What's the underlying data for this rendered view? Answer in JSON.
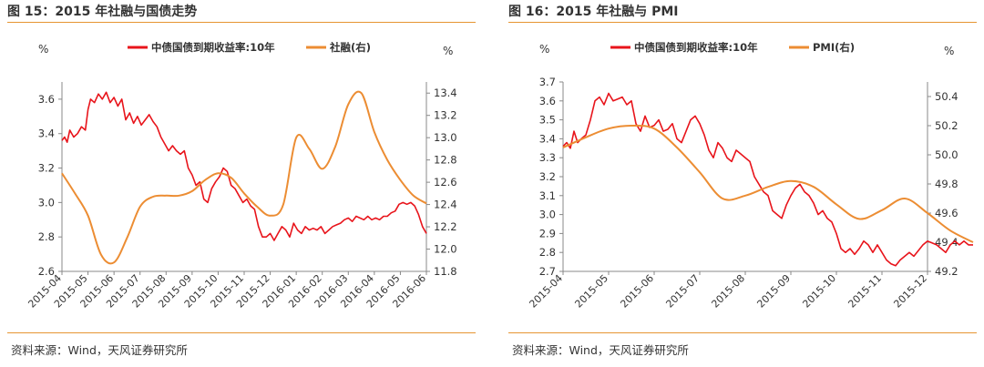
{
  "colors": {
    "accent": "#E69532",
    "red_series": "#E8141B",
    "orange_series": "#EC8D33"
  },
  "left": {
    "title": "图 15：2015 年社融与国债走势",
    "source": "资料来源：Wind，天风证券研究所"
  },
  "right": {
    "title": "图 16：2015 年社融与 PMI",
    "source": "资料来源：Wind，天风证券研究所"
  },
  "chart_data": [
    {
      "type": "line",
      "title": "",
      "grid": false,
      "legend": "top-right",
      "y_left_unit": "%",
      "y_right_unit": "%",
      "y_left_lim": [
        2.6,
        3.7
      ],
      "y_left_ticks": [
        "2.6",
        "2.8",
        "3.0",
        "3.2",
        "3.4",
        "3.6"
      ],
      "y_right_lim": [
        11.8,
        13.5
      ],
      "y_right_ticks": [
        "11.8",
        "12.0",
        "12.2",
        "12.4",
        "12.6",
        "12.8",
        "13.0",
        "13.2",
        "13.4"
      ],
      "x_categories": [
        "2015-04",
        "2015-05",
        "2015-06",
        "2015-07",
        "2015-08",
        "2015-09",
        "2015-10",
        "2015-11",
        "2015-12",
        "2016-01",
        "2016-02",
        "2016-03",
        "2016-04",
        "2016-05",
        "2016-06"
      ],
      "series": [
        {
          "name": "中债国债到期收益率:10年",
          "axis": "left",
          "x": [
            0,
            0.1,
            0.2,
            0.3,
            0.45,
            0.6,
            0.75,
            0.9,
            1.0,
            1.1,
            1.25,
            1.4,
            1.55,
            1.7,
            1.85,
            2.0,
            2.15,
            2.3,
            2.45,
            2.6,
            2.75,
            2.9,
            3.05,
            3.2,
            3.35,
            3.5,
            3.65,
            3.8,
            3.95,
            4.1,
            4.25,
            4.4,
            4.55,
            4.7,
            4.85,
            5.0,
            5.15,
            5.3,
            5.45,
            5.6,
            5.75,
            5.9,
            6.05,
            6.2,
            6.35,
            6.5,
            6.65,
            6.8,
            6.95,
            7.1,
            7.25,
            7.4,
            7.55,
            7.7,
            7.85,
            8.0,
            8.15,
            8.3,
            8.45,
            8.6,
            8.75,
            8.9,
            9.05,
            9.2,
            9.35,
            9.5,
            9.65,
            9.8,
            9.95,
            10.1,
            10.25,
            10.4,
            10.55,
            10.7,
            10.85,
            11.0,
            11.15,
            11.3,
            11.45,
            11.6,
            11.75,
            11.9,
            12.05,
            12.2,
            12.35,
            12.5,
            12.65,
            12.8,
            12.95,
            13.1,
            13.25,
            13.4,
            13.55,
            13.7,
            13.85,
            14.0
          ],
          "values": [
            3.36,
            3.38,
            3.35,
            3.42,
            3.38,
            3.4,
            3.44,
            3.42,
            3.54,
            3.6,
            3.58,
            3.63,
            3.6,
            3.64,
            3.58,
            3.61,
            3.56,
            3.6,
            3.48,
            3.52,
            3.46,
            3.5,
            3.45,
            3.48,
            3.51,
            3.47,
            3.44,
            3.38,
            3.34,
            3.3,
            3.33,
            3.3,
            3.28,
            3.3,
            3.2,
            3.16,
            3.1,
            3.12,
            3.02,
            3.0,
            3.08,
            3.12,
            3.15,
            3.2,
            3.18,
            3.1,
            3.08,
            3.04,
            3.0,
            3.02,
            2.98,
            2.96,
            2.86,
            2.8,
            2.8,
            2.82,
            2.78,
            2.82,
            2.86,
            2.84,
            2.8,
            2.88,
            2.84,
            2.82,
            2.86,
            2.84,
            2.85,
            2.84,
            2.86,
            2.82,
            2.84,
            2.86,
            2.87,
            2.88,
            2.9,
            2.91,
            2.89,
            2.92,
            2.91,
            2.9,
            2.92,
            2.9,
            2.91,
            2.9,
            2.92,
            2.92,
            2.94,
            2.95,
            2.99,
            3.0,
            2.99,
            3.0,
            2.98,
            2.93,
            2.86,
            2.82
          ]
        },
        {
          "name": "社融(右)",
          "axis": "right",
          "x": [
            0,
            0.5,
            1,
            1.5,
            2,
            2.5,
            3,
            3.5,
            4,
            4.5,
            5,
            5.5,
            6,
            6.5,
            7,
            7.5,
            8,
            8.5,
            9,
            9.5,
            10,
            10.5,
            11,
            11.5,
            12,
            12.5,
            13,
            13.5,
            14
          ],
          "values": [
            12.68,
            12.5,
            12.3,
            11.95,
            11.88,
            12.1,
            12.38,
            12.47,
            12.48,
            12.48,
            12.52,
            12.62,
            12.68,
            12.64,
            12.5,
            12.38,
            12.3,
            12.4,
            13.0,
            12.9,
            12.72,
            12.92,
            13.3,
            13.4,
            13.05,
            12.8,
            12.62,
            12.48,
            12.41
          ]
        }
      ]
    },
    {
      "type": "line",
      "title": "",
      "grid": false,
      "legend": "top-right",
      "y_left_unit": "%",
      "y_right_unit": "%",
      "y_left_lim": [
        2.7,
        3.7
      ],
      "y_left_ticks": [
        "2.7",
        "2.8",
        "2.9",
        "3.0",
        "3.1",
        "3.2",
        "3.3",
        "3.4",
        "3.5",
        "3.6",
        "3.7"
      ],
      "y_right_lim": [
        49.2,
        50.5
      ],
      "y_right_ticks": [
        "49.2",
        "49.4",
        "49.6",
        "49.8",
        "50.0",
        "50.2",
        "50.4"
      ],
      "x_categories": [
        "2015-04",
        "2015-05",
        "2015-06",
        "2015-07",
        "2015-08",
        "2015-09",
        "2015-10",
        "2015-11",
        "2015-12"
      ],
      "series": [
        {
          "name": "中债国债到期收益率:10年",
          "axis": "left",
          "x": [
            0,
            0.08,
            0.16,
            0.24,
            0.32,
            0.4,
            0.5,
            0.6,
            0.7,
            0.8,
            0.9,
            1.0,
            1.1,
            1.2,
            1.3,
            1.4,
            1.5,
            1.6,
            1.7,
            1.8,
            1.9,
            2.0,
            2.1,
            2.2,
            2.3,
            2.4,
            2.5,
            2.6,
            2.7,
            2.8,
            2.9,
            3.0,
            3.1,
            3.2,
            3.3,
            3.4,
            3.5,
            3.6,
            3.7,
            3.8,
            3.9,
            4.0,
            4.1,
            4.2,
            4.3,
            4.4,
            4.5,
            4.6,
            4.7,
            4.8,
            4.9,
            5.0,
            5.1,
            5.2,
            5.3,
            5.4,
            5.5,
            5.6,
            5.7,
            5.8,
            5.9,
            6.0,
            6.1,
            6.2,
            6.3,
            6.4,
            6.5,
            6.6,
            6.7,
            6.8,
            6.9,
            7.0,
            7.1,
            7.2,
            7.3,
            7.4,
            7.5,
            7.6,
            7.7,
            7.8,
            7.9,
            8.0,
            8.1,
            8.2,
            8.3,
            8.4,
            8.5,
            8.6,
            8.7,
            8.8,
            8.9,
            9.0
          ],
          "values": [
            3.36,
            3.38,
            3.35,
            3.44,
            3.38,
            3.4,
            3.42,
            3.5,
            3.6,
            3.62,
            3.58,
            3.64,
            3.6,
            3.61,
            3.62,
            3.58,
            3.6,
            3.48,
            3.44,
            3.52,
            3.46,
            3.47,
            3.5,
            3.44,
            3.45,
            3.48,
            3.4,
            3.38,
            3.44,
            3.5,
            3.52,
            3.48,
            3.42,
            3.34,
            3.3,
            3.38,
            3.35,
            3.3,
            3.28,
            3.34,
            3.32,
            3.3,
            3.28,
            3.2,
            3.16,
            3.12,
            3.1,
            3.02,
            3.0,
            2.98,
            3.05,
            3.1,
            3.14,
            3.16,
            3.12,
            3.1,
            3.06,
            3.0,
            3.02,
            2.98,
            2.96,
            2.9,
            2.82,
            2.8,
            2.82,
            2.79,
            2.82,
            2.86,
            2.84,
            2.8,
            2.84,
            2.8,
            2.76,
            2.74,
            2.73,
            2.76,
            2.78,
            2.8,
            2.78,
            2.81,
            2.84,
            2.86,
            2.85,
            2.84,
            2.82,
            2.8,
            2.84,
            2.86,
            2.84,
            2.86,
            2.84,
            2.84
          ]
        },
        {
          "name": "PMI(右)",
          "axis": "right",
          "x": [
            0,
            0.5,
            1,
            1.5,
            2,
            2.5,
            3,
            3.5,
            4,
            4.5,
            5,
            5.5,
            6,
            6.5,
            7,
            7.5,
            8,
            8.5,
            9
          ],
          "values": [
            50.05,
            50.12,
            50.18,
            50.2,
            50.18,
            50.05,
            49.88,
            49.7,
            49.72,
            49.78,
            49.82,
            49.78,
            49.66,
            49.56,
            49.62,
            49.7,
            49.6,
            49.48,
            49.4
          ]
        }
      ]
    }
  ]
}
